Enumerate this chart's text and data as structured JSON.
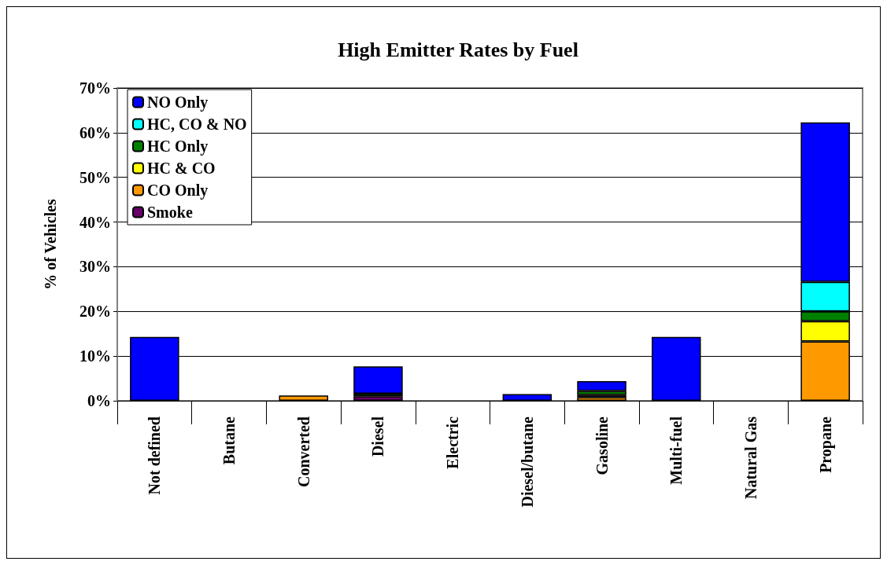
{
  "chart_data": {
    "type": "bar",
    "title": "High Emitter Rates by Fuel",
    "ylabel": "% of Vehicles",
    "stacked": true,
    "legend": "top left",
    "grid": "y",
    "categories": [
      "Not defined",
      "Butane",
      "Converted",
      "Diesel",
      "Electric",
      "Diesel/butane",
      "Gasoline",
      "Multi-fuel",
      "Natural Gas",
      "Propane"
    ],
    "ylim": [
      0,
      70
    ],
    "yticks": [
      {
        "value": 0,
        "label": "0%"
      },
      {
        "value": 10,
        "label": "10%"
      },
      {
        "value": 20,
        "label": "20%"
      },
      {
        "value": 30,
        "label": "30%"
      },
      {
        "value": 40,
        "label": "40%"
      },
      {
        "value": 50,
        "label": "50%"
      },
      {
        "value": 60,
        "label": "60%"
      },
      {
        "value": 70,
        "label": "70%"
      }
    ],
    "series": [
      {
        "name": "Smoke",
        "color": "#660066",
        "values": [
          0,
          0,
          0,
          1.0,
          0,
          0,
          0,
          0,
          0,
          0
        ]
      },
      {
        "name": "CO Only",
        "color": "#ff9900",
        "values": [
          0,
          0,
          1.2,
          0,
          0,
          0,
          0.8,
          0,
          0,
          13.3
        ]
      },
      {
        "name": "HC & CO",
        "color": "#ffff00",
        "values": [
          0,
          0,
          0,
          0,
          0,
          0,
          0.5,
          0,
          0,
          4.5
        ]
      },
      {
        "name": "HC Only",
        "color": "#008000",
        "values": [
          0,
          0,
          0,
          0.6,
          0,
          0,
          0.9,
          0,
          0,
          2.2
        ]
      },
      {
        "name": "HC, CO & NO",
        "color": "#00ffff",
        "values": [
          0,
          0,
          0,
          0,
          0,
          0,
          0,
          0,
          0,
          6.6
        ]
      },
      {
        "name": "NO Only",
        "color": "#0000ff",
        "values": [
          14.3,
          0,
          0,
          6.1,
          0,
          1.5,
          2.2,
          14.3,
          0,
          35.7
        ]
      }
    ]
  }
}
